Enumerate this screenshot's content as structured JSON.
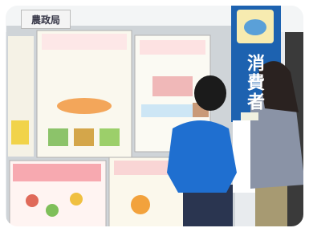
{
  "signs": {
    "office": "農政局",
    "banner": "消費者"
  }
}
